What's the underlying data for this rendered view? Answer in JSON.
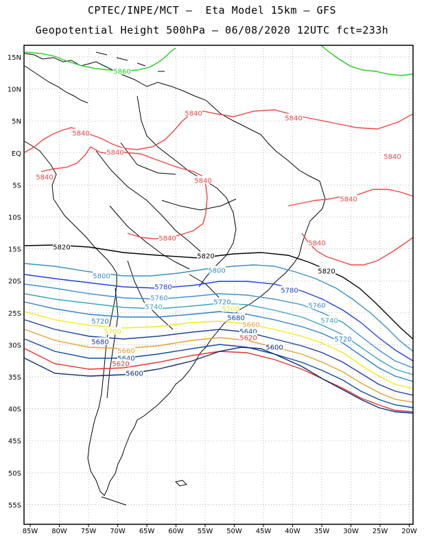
{
  "header": {
    "line1": "CPTEC/INPE/MCT –  Eta Model 15km – GFS",
    "line2": "Geopotential Height 500hPa – 06/08/2020 12UTC fct=233h"
  },
  "axes": {
    "lon_labels": [
      "85W",
      "80W",
      "75W",
      "70W",
      "65W",
      "60W",
      "55W",
      "50W",
      "45W",
      "40W",
      "35W",
      "30W",
      "25W",
      "20W"
    ],
    "lat_labels": [
      "15N",
      "10N",
      "5N",
      "EQ",
      "5S",
      "10S",
      "15S",
      "20S",
      "25S",
      "30S",
      "35S",
      "40S",
      "45S",
      "50S",
      "55S"
    ],
    "grid": "dotted"
  },
  "colors": {
    "5860": "#22cc22",
    "5840": "#ee4444",
    "5820": "#000000",
    "5800": "#3a8fbf",
    "5780": "#1e3fdc",
    "5760": "#3f8fd0",
    "5740": "#3aa5b5",
    "5720": "#2a7fc8",
    "5700": "#f2e81a",
    "5680": "#1a3f9a",
    "5660": "#e0a030",
    "5640": "#0a4aa0",
    "5620": "#e83030",
    "5600": "#0a2a70"
  },
  "contour_labels": [
    {
      "id": "lbl-5860",
      "text": "5860",
      "level": "5860"
    },
    {
      "id": "lbl-5840-a",
      "text": "5840",
      "level": "5840"
    },
    {
      "id": "lbl-5840-b",
      "text": "5840",
      "level": "5840"
    },
    {
      "id": "lbl-5840-c",
      "text": "5840",
      "level": "5840"
    },
    {
      "id": "lbl-5840-d",
      "text": "5840",
      "level": "5840"
    },
    {
      "id": "lbl-5840-e",
      "text": "5840",
      "level": "5840"
    },
    {
      "id": "lbl-5840-f",
      "text": "5840",
      "level": "5840"
    },
    {
      "id": "lbl-5840-g",
      "text": "5840",
      "level": "5840"
    },
    {
      "id": "lbl-5840-h",
      "text": "5840",
      "level": "5840"
    },
    {
      "id": "lbl-5840-i",
      "text": "5840",
      "level": "5840"
    },
    {
      "id": "lbl-5840-j",
      "text": "5840",
      "level": "5840"
    },
    {
      "id": "lbl-5820-a",
      "text": "5820",
      "level": "5820"
    },
    {
      "id": "lbl-5820-b",
      "text": "5820",
      "level": "5820"
    },
    {
      "id": "lbl-5820-c",
      "text": "5820",
      "level": "5820"
    },
    {
      "id": "lbl-5800-a",
      "text": "5800",
      "level": "5800"
    },
    {
      "id": "lbl-5800-b",
      "text": "5800",
      "level": "5800"
    },
    {
      "id": "lbl-5780-a",
      "text": "5780",
      "level": "5780"
    },
    {
      "id": "lbl-5780-b",
      "text": "5780",
      "level": "5780"
    },
    {
      "id": "lbl-5760-a",
      "text": "5760",
      "level": "5760"
    },
    {
      "id": "lbl-5760-b",
      "text": "5760",
      "level": "5760"
    },
    {
      "id": "lbl-5740-a",
      "text": "5740",
      "level": "5740"
    },
    {
      "id": "lbl-5740-b",
      "text": "5740",
      "level": "5740"
    },
    {
      "id": "lbl-5720-a",
      "text": "5720",
      "level": "5720"
    },
    {
      "id": "lbl-5720-b",
      "text": "5720",
      "level": "5720"
    },
    {
      "id": "lbl-5720-c",
      "text": "5720",
      "level": "5720"
    },
    {
      "id": "lbl-5700-a",
      "text": "5700",
      "level": "5700"
    },
    {
      "id": "lbl-5700-b",
      "text": "5700",
      "level": "5700"
    },
    {
      "id": "lbl-5680-a",
      "text": "5680",
      "level": "5680"
    },
    {
      "id": "lbl-5680-b",
      "text": "5680",
      "level": "5680"
    },
    {
      "id": "lbl-5660-a",
      "text": "5660",
      "level": "5660"
    },
    {
      "id": "lbl-5660-b",
      "text": "5660",
      "level": "5660"
    },
    {
      "id": "lbl-5640-a",
      "text": "5640",
      "level": "5640"
    },
    {
      "id": "lbl-5640-b",
      "text": "5640",
      "level": "5640"
    },
    {
      "id": "lbl-5620-a",
      "text": "5620",
      "level": "5620"
    },
    {
      "id": "lbl-5620-b",
      "text": "5620",
      "level": "5620"
    },
    {
      "id": "lbl-5600-a",
      "text": "5600",
      "level": "5600"
    },
    {
      "id": "lbl-5600-b",
      "text": "5600",
      "level": "5600"
    }
  ]
}
